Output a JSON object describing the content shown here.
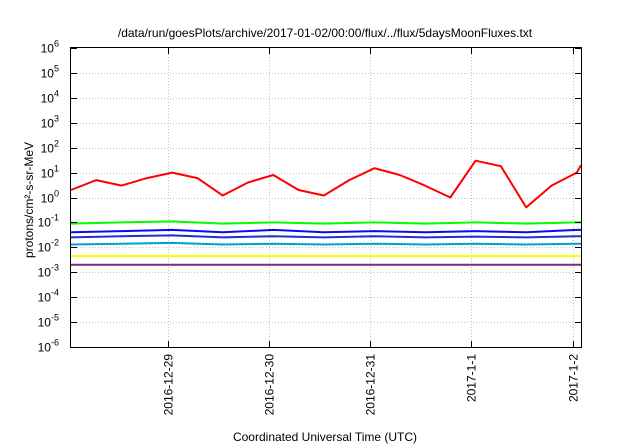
{
  "chart_data": {
    "type": "line",
    "title": "/data/run/goesPlots/archive/2017-01-02/00:00/flux/../flux/5daysMoonFluxes.txt",
    "xlabel": "Coordinated Universal Time (UTC)",
    "ylabel": "protons/cm²-s-sr-MeV",
    "ylog": true,
    "ylim": [
      1e-06,
      1000000.0
    ],
    "yticks": [
      {
        "v": -6,
        "base": "10",
        "exp": "-6"
      },
      {
        "v": -5,
        "base": "10",
        "exp": "-5"
      },
      {
        "v": -4,
        "base": "10",
        "exp": "-4"
      },
      {
        "v": -3,
        "base": "10",
        "exp": "-3"
      },
      {
        "v": -2,
        "base": "10",
        "exp": "-2"
      },
      {
        "v": -1,
        "base": "10",
        "exp": "-1"
      },
      {
        "v": 0,
        "base": "10",
        "exp": "0"
      },
      {
        "v": 1,
        "base": "10",
        "exp": "1"
      },
      {
        "v": 2,
        "base": "10",
        "exp": "2"
      },
      {
        "v": 3,
        "base": "10",
        "exp": "3"
      },
      {
        "v": 4,
        "base": "10",
        "exp": "4"
      },
      {
        "v": 5,
        "base": "10",
        "exp": "5"
      },
      {
        "v": 6,
        "base": "10",
        "exp": "6"
      }
    ],
    "xlim": [
      "2016-12-28 01:00",
      "2017-01-02 02:00"
    ],
    "xticks": [
      "2016-12-29",
      "2016-12-30",
      "2016-12-31",
      "2017-1-1",
      "2017-1-2"
    ],
    "grid": true,
    "series": [
      {
        "color": "#ff0000",
        "x": [
          "2016-12-28 01:00",
          "2016-12-28 07:00",
          "2016-12-28 13:00",
          "2016-12-28 19:00",
          "2016-12-29 01:00",
          "2016-12-29 07:00",
          "2016-12-29 13:00",
          "2016-12-29 19:00",
          "2016-12-30 01:00",
          "2016-12-30 07:00",
          "2016-12-30 13:00",
          "2016-12-30 19:00",
          "2016-12-31 01:00",
          "2016-12-31 07:00",
          "2016-12-31 13:00",
          "2016-12-31 19:00",
          "2017-01-01 01:00",
          "2017-01-01 07:00",
          "2017-01-01 13:00",
          "2017-01-01 19:00",
          "2017-01-02 01:00",
          "2017-01-02 02:00"
        ],
        "y": [
          2,
          5,
          3,
          6,
          10,
          6,
          1.2,
          4,
          8,
          2,
          1.2,
          5,
          15,
          8,
          3,
          1,
          30,
          18,
          0.4,
          3,
          10,
          20
        ]
      },
      {
        "color": "#00ff00",
        "x": [
          "2016-12-28 01:00",
          "2016-12-28 13:00",
          "2016-12-29 01:00",
          "2016-12-29 13:00",
          "2016-12-30 01:00",
          "2016-12-30 13:00",
          "2016-12-31 01:00",
          "2016-12-31 13:00",
          "2017-01-01 01:00",
          "2017-01-01 13:00",
          "2017-01-02 01:00",
          "2017-01-02 02:00"
        ],
        "y": [
          0.09,
          0.1,
          0.11,
          0.09,
          0.1,
          0.09,
          0.1,
          0.09,
          0.1,
          0.09,
          0.1,
          0.1
        ]
      },
      {
        "color": "#0a0aff",
        "x": [
          "2016-12-28 01:00",
          "2016-12-28 13:00",
          "2016-12-29 01:00",
          "2016-12-29 13:00",
          "2016-12-30 01:00",
          "2016-12-30 13:00",
          "2016-12-31 01:00",
          "2016-12-31 13:00",
          "2017-01-01 01:00",
          "2017-01-01 13:00",
          "2017-01-02 01:00",
          "2017-01-02 02:00"
        ],
        "y": [
          0.04,
          0.045,
          0.05,
          0.04,
          0.05,
          0.04,
          0.045,
          0.04,
          0.045,
          0.04,
          0.05,
          0.05
        ]
      },
      {
        "color": "#1f2fd0",
        "x": [
          "2016-12-28 01:00",
          "2016-12-28 13:00",
          "2016-12-29 01:00",
          "2016-12-29 13:00",
          "2016-12-30 01:00",
          "2016-12-30 13:00",
          "2016-12-31 01:00",
          "2016-12-31 13:00",
          "2017-01-01 01:00",
          "2017-01-01 13:00",
          "2017-01-02 01:00",
          "2017-01-02 02:00"
        ],
        "y": [
          0.025,
          0.028,
          0.03,
          0.025,
          0.028,
          0.025,
          0.028,
          0.025,
          0.027,
          0.025,
          0.028,
          0.028
        ]
      },
      {
        "color": "#00a0d0",
        "x": [
          "2016-12-28 01:00",
          "2016-12-28 13:00",
          "2016-12-29 01:00",
          "2016-12-29 13:00",
          "2016-12-30 01:00",
          "2016-12-30 13:00",
          "2016-12-31 01:00",
          "2016-12-31 13:00",
          "2017-01-01 01:00",
          "2017-01-01 13:00",
          "2017-01-02 01:00",
          "2017-01-02 02:00"
        ],
        "y": [
          0.013,
          0.014,
          0.015,
          0.013,
          0.014,
          0.013,
          0.014,
          0.013,
          0.014,
          0.013,
          0.014,
          0.014
        ]
      },
      {
        "color": "#ffff00",
        "x": [
          "2016-12-28 01:00",
          "2016-12-28 13:00",
          "2016-12-29 01:00",
          "2016-12-29 13:00",
          "2016-12-30 01:00",
          "2016-12-30 13:00",
          "2016-12-31 01:00",
          "2016-12-31 13:00",
          "2017-01-01 01:00",
          "2017-01-01 13:00",
          "2017-01-02 01:00",
          "2017-01-02 02:00"
        ],
        "y": [
          0.0045,
          0.0045,
          0.0045,
          0.0045,
          0.0045,
          0.0045,
          0.0045,
          0.0045,
          0.0045,
          0.0045,
          0.0045,
          0.0045
        ]
      },
      {
        "color": "#7f2a7f",
        "x": [
          "2016-12-28 01:00",
          "2016-12-28 13:00",
          "2016-12-29 01:00",
          "2016-12-29 13:00",
          "2016-12-30 01:00",
          "2016-12-30 13:00",
          "2016-12-31 01:00",
          "2016-12-31 13:00",
          "2017-01-01 01:00",
          "2017-01-01 13:00",
          "2017-01-02 01:00",
          "2017-01-02 02:00"
        ],
        "y": [
          0.002,
          0.002,
          0.002,
          0.002,
          0.002,
          0.002,
          0.002,
          0.002,
          0.002,
          0.002,
          0.002,
          0.002
        ]
      }
    ]
  }
}
